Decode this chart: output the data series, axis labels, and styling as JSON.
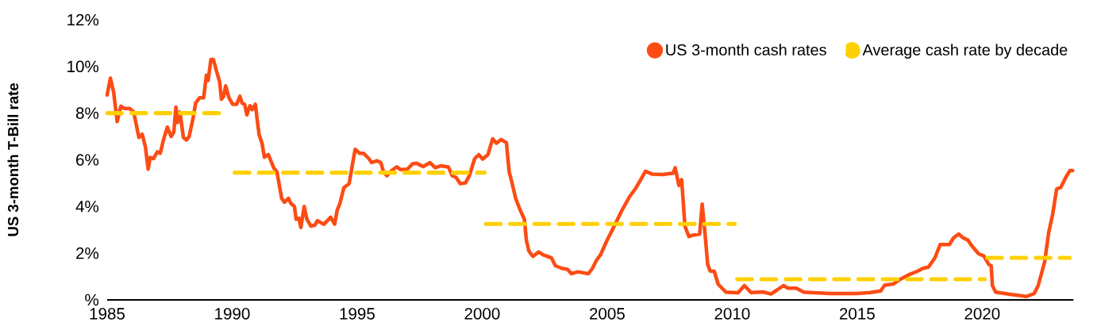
{
  "chart_data": {
    "type": "line",
    "ylabel": "US 3-month T-Bill rate",
    "xlim": [
      1985,
      2023.65
    ],
    "xticks": [
      1985,
      1990,
      1995,
      2000,
      2005,
      2010,
      2015,
      2020
    ],
    "ylim": [
      0,
      12
    ],
    "yticks": [
      {
        "value": 0,
        "label": "%"
      },
      {
        "value": 2,
        "label": "2%"
      },
      {
        "value": 4,
        "label": "4%"
      },
      {
        "value": 6,
        "label": "6%"
      },
      {
        "value": 8,
        "label": "8%"
      },
      {
        "value": 10,
        "label": "10%"
      },
      {
        "value": 12,
        "label": "12%"
      }
    ],
    "legend": "top right",
    "series": [
      {
        "name": "US 3-month cash rates",
        "color": "#fc4c14",
        "line_style": "solid",
        "x": [
          1985.0,
          1985.13,
          1985.26,
          1985.4,
          1985.55,
          1985.69,
          1985.9,
          1986.06,
          1986.27,
          1986.4,
          1986.53,
          1986.64,
          1986.72,
          1986.85,
          1987.01,
          1987.12,
          1987.28,
          1987.41,
          1987.56,
          1987.67,
          1987.75,
          1987.82,
          1987.91,
          1988.05,
          1988.17,
          1988.28,
          1988.44,
          1988.54,
          1988.7,
          1988.86,
          1988.97,
          1989.04,
          1989.15,
          1989.25,
          1989.39,
          1989.5,
          1989.57,
          1989.66,
          1989.74,
          1989.87,
          1990.02,
          1990.18,
          1990.31,
          1990.4,
          1990.5,
          1990.59,
          1990.71,
          1990.8,
          1990.93,
          1991.01,
          1991.08,
          1991.19,
          1991.29,
          1991.45,
          1991.66,
          1991.79,
          1991.98,
          1992.09,
          1992.25,
          1992.35,
          1992.49,
          1992.56,
          1992.67,
          1992.75,
          1992.88,
          1992.99,
          1993.15,
          1993.31,
          1993.41,
          1993.67,
          1993.94,
          1994.1,
          1994.2,
          1994.31,
          1994.47,
          1994.68,
          1994.78,
          1994.92,
          1995.1,
          1995.26,
          1995.47,
          1995.58,
          1995.79,
          1995.95,
          1996.05,
          1996.19,
          1996.32,
          1996.58,
          1996.74,
          1997.01,
          1997.22,
          1997.38,
          1997.64,
          1997.91,
          1998.12,
          1998.33,
          1998.65,
          1998.8,
          1998.96,
          1999.12,
          1999.33,
          1999.49,
          1999.7,
          1999.86,
          2000.02,
          2000.23,
          2000.42,
          2000.57,
          2000.76,
          2000.97,
          2001.08,
          2001.19,
          2001.34,
          2001.5,
          2001.69,
          2001.77,
          2001.87,
          2002.03,
          2002.26,
          2002.45,
          2002.77,
          2002.93,
          2003.19,
          2003.41,
          2003.57,
          2003.83,
          2004.25,
          2004.41,
          2004.57,
          2004.73,
          2004.99,
          2005.31,
          2005.57,
          2005.89,
          2006.16,
          2006.37,
          2006.53,
          2006.79,
          2007.22,
          2007.64,
          2007.72,
          2007.87,
          2007.98,
          2008.11,
          2008.27,
          2008.43,
          2008.7,
          2008.8,
          2008.93,
          2009.02,
          2009.12,
          2009.28,
          2009.44,
          2009.75,
          2010.23,
          2010.49,
          2010.76,
          2011.24,
          2011.55,
          2011.82,
          2012.05,
          2012.24,
          2012.56,
          2012.87,
          2013.93,
          2014.99,
          2015.52,
          2015.94,
          2016.1,
          2016.47,
          2016.68,
          2017.1,
          2017.42,
          2017.63,
          2017.85,
          2018.11,
          2018.32,
          2018.69,
          2018.85,
          2019.06,
          2019.22,
          2019.43,
          2019.59,
          2019.86,
          2020.07,
          2020.26,
          2020.36,
          2020.41,
          2020.54,
          2021.02,
          2021.44,
          2021.76,
          2022.08,
          2022.24,
          2022.5,
          2022.66,
          2022.82,
          2022.98,
          2023.14,
          2023.35,
          2023.51,
          2023.62
        ],
        "values": [
          8.78,
          9.5,
          8.9,
          7.64,
          8.3,
          8.2,
          8.2,
          8.05,
          6.96,
          7.1,
          6.56,
          5.6,
          6.1,
          6.05,
          6.34,
          6.28,
          6.96,
          7.4,
          7.0,
          7.2,
          8.26,
          7.6,
          8.05,
          6.96,
          6.85,
          7.0,
          7.8,
          8.43,
          8.66,
          8.66,
          9.63,
          9.4,
          10.3,
          10.3,
          9.74,
          9.34,
          8.6,
          8.72,
          9.17,
          8.66,
          8.38,
          8.38,
          8.72,
          8.43,
          8.38,
          7.93,
          8.32,
          8.15,
          8.38,
          7.64,
          7.07,
          6.73,
          6.11,
          6.22,
          5.66,
          5.49,
          4.35,
          4.18,
          4.35,
          4.13,
          4.0,
          3.45,
          3.5,
          3.1,
          4.0,
          3.45,
          3.16,
          3.2,
          3.39,
          3.24,
          3.54,
          3.24,
          3.84,
          4.13,
          4.81,
          4.98,
          5.6,
          6.45,
          6.28,
          6.28,
          6.05,
          5.88,
          5.96,
          5.88,
          5.49,
          5.32,
          5.49,
          5.7,
          5.58,
          5.6,
          5.83,
          5.85,
          5.71,
          5.88,
          5.66,
          5.74,
          5.69,
          5.32,
          5.24,
          4.98,
          5.01,
          5.32,
          6.05,
          6.22,
          6.03,
          6.22,
          6.9,
          6.71,
          6.87,
          6.73,
          5.49,
          5.03,
          4.35,
          3.9,
          3.45,
          2.54,
          2.09,
          1.86,
          2.05,
          1.92,
          1.8,
          1.46,
          1.35,
          1.31,
          1.12,
          1.2,
          1.12,
          1.35,
          1.69,
          1.92,
          2.54,
          3.22,
          3.79,
          4.41,
          4.81,
          5.2,
          5.51,
          5.39,
          5.37,
          5.43,
          5.66,
          4.9,
          5.15,
          3.16,
          2.71,
          2.77,
          2.82,
          4.1,
          2.65,
          1.52,
          1.23,
          1.23,
          0.67,
          0.33,
          0.3,
          0.61,
          0.31,
          0.34,
          0.25,
          0.44,
          0.61,
          0.5,
          0.5,
          0.33,
          0.27,
          0.27,
          0.31,
          0.38,
          0.63,
          0.69,
          0.86,
          1.09,
          1.23,
          1.35,
          1.4,
          1.8,
          2.37,
          2.37,
          2.65,
          2.82,
          2.67,
          2.56,
          2.31,
          1.97,
          1.88,
          1.52,
          1.46,
          0.61,
          0.33,
          0.25,
          0.19,
          0.14,
          0.27,
          0.61,
          1.63,
          2.88,
          3.67,
          4.75,
          4.81,
          5.26,
          5.54,
          5.54
        ]
      },
      {
        "name": "Average cash rate by decade",
        "color": "#ffd000",
        "line_style": "dashed",
        "x": [
          1985,
          1989.7
        ],
        "values": [
          8.0,
          8.0
        ]
      },
      {
        "color": "#ffd000",
        "line_style": "dashed",
        "x": [
          1990.1,
          2000.1
        ],
        "values": [
          5.45,
          5.45
        ]
      },
      {
        "color": "#ffd000",
        "line_style": "dashed",
        "x": [
          2000.15,
          2010.1
        ],
        "values": [
          3.25,
          3.25
        ]
      },
      {
        "color": "#ffd000",
        "line_style": "dashed",
        "x": [
          2010.2,
          2020.1
        ],
        "values": [
          0.88,
          0.88
        ]
      },
      {
        "color": "#ffd000",
        "line_style": "dashed",
        "x": [
          2020.2,
          2023.5
        ],
        "values": [
          1.8,
          1.8
        ]
      }
    ]
  }
}
